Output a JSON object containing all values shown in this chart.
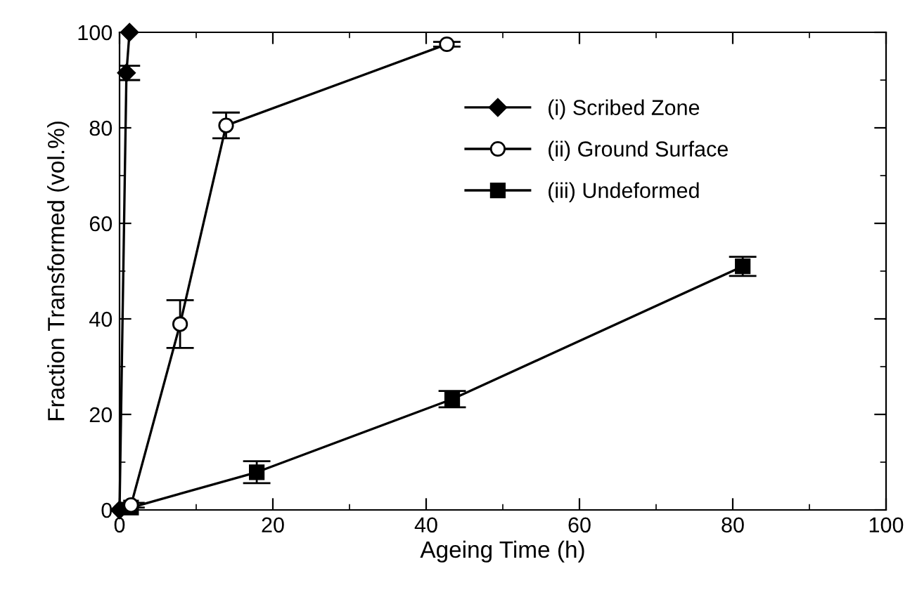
{
  "chart_data": {
    "type": "line",
    "xlabel": "Ageing Time (h)",
    "ylabel": "Fraction Transformed (vol.%)",
    "xlim": [
      0,
      100
    ],
    "ylim": [
      0,
      100
    ],
    "xticks": [
      0,
      20,
      40,
      60,
      80,
      100
    ],
    "yticks": [
      0,
      20,
      40,
      60,
      80,
      100
    ],
    "grid": false,
    "legend": "top right",
    "series": [
      {
        "name": "(i) Scribed Zone",
        "color": "#000000",
        "marker": "diamond",
        "x": [
          0,
          0.9,
          1.3
        ],
        "values": [
          0,
          91.5,
          100
        ],
        "errors": [
          null,
          1.5,
          null
        ]
      },
      {
        "name": "(ii) Ground Surface",
        "color": "#000000",
        "marker": "circle",
        "x": [
          1.5,
          7.9,
          13.9,
          42.7
        ],
        "values": [
          1,
          38.9,
          80.5,
          97.5
        ],
        "errors": [
          0.5,
          5,
          2.7,
          0.5
        ]
      },
      {
        "name": "(iii) Undeformed",
        "color": "#000000",
        "marker": "square",
        "x": [
          1.5,
          17.9,
          43.4,
          81.3
        ],
        "values": [
          0.5,
          7.9,
          23.2,
          51
        ],
        "errors": [
          null,
          2.3,
          1.7,
          2
        ]
      }
    ]
  }
}
